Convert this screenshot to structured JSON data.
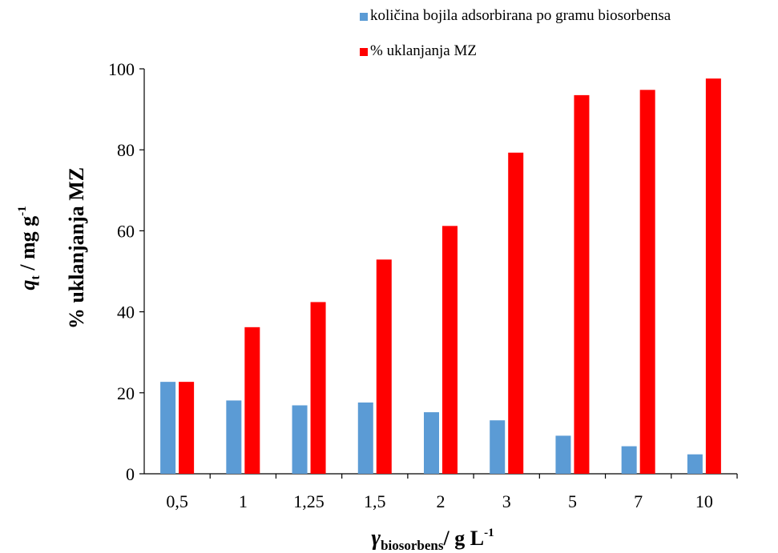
{
  "chart_data": {
    "type": "bar",
    "categories": [
      "0,5",
      "1",
      "1,25",
      "1,5",
      "2",
      "3",
      "5",
      "7",
      "10"
    ],
    "series": [
      {
        "name": "količina bojila adsorbirana po gramu biosorbensa",
        "color": "#5b9bd5",
        "values": [
          22.7,
          18.1,
          16.9,
          17.6,
          15.2,
          13.2,
          9.4,
          6.8,
          4.8
        ]
      },
      {
        "name": "% uklanjanja MZ",
        "color": "#ff0000",
        "values": [
          22.7,
          36.2,
          42.4,
          52.9,
          61.2,
          79.3,
          93.5,
          94.8,
          97.6
        ]
      }
    ],
    "ylim": [
      0,
      100
    ],
    "yticks": [
      "0",
      "20",
      "40",
      "60",
      "80",
      "100"
    ],
    "ylabel_outer": {
      "main": "q",
      "sub": "t",
      "rest": " / mg g",
      "sup": "-1"
    },
    "ylabel_inner": "% uklanjanja  MZ",
    "xlabel": {
      "main": "γ",
      "sub": "biosorbens",
      "rest": "/ g L",
      "sup": "-1"
    },
    "legend_position": "top-right",
    "grid": false
  }
}
